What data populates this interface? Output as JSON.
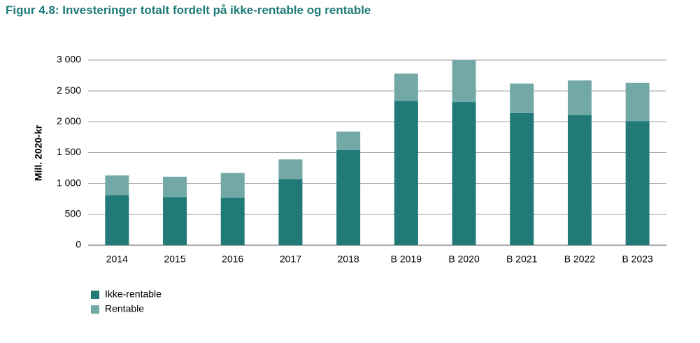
{
  "chart_data": {
    "type": "stacked-bar",
    "title": "Figur 4.8: Investeringer totalt fordelt på ikke-rentable og rentable",
    "y_label": "Mill. 2020-kr",
    "categories": [
      "2014",
      "2015",
      "2016",
      "2017",
      "2018",
      "B 2019",
      "B 2020",
      "B 2021",
      "B 2022",
      "B 2023"
    ],
    "series": [
      {
        "name": "Ikke-rentable",
        "color": "#217a78",
        "values": [
          810,
          780,
          770,
          1070,
          1540,
          2340,
          2320,
          2140,
          2110,
          2010
        ]
      },
      {
        "name": "Rentable",
        "color": "#72a9a6",
        "values": [
          320,
          330,
          400,
          320,
          300,
          440,
          680,
          480,
          560,
          620
        ]
      }
    ],
    "ylim": [
      0,
      3000
    ],
    "yticks": [
      0,
      500,
      {
        "value": 1000,
        "label": "1 000"
      },
      {
        "value": 1500,
        "label": "1 500"
      },
      {
        "value": 2000,
        "label": "2 000"
      },
      {
        "value": 2500,
        "label": "2 500"
      },
      {
        "value": 3000,
        "label": "3 000"
      }
    ],
    "grid": true
  }
}
